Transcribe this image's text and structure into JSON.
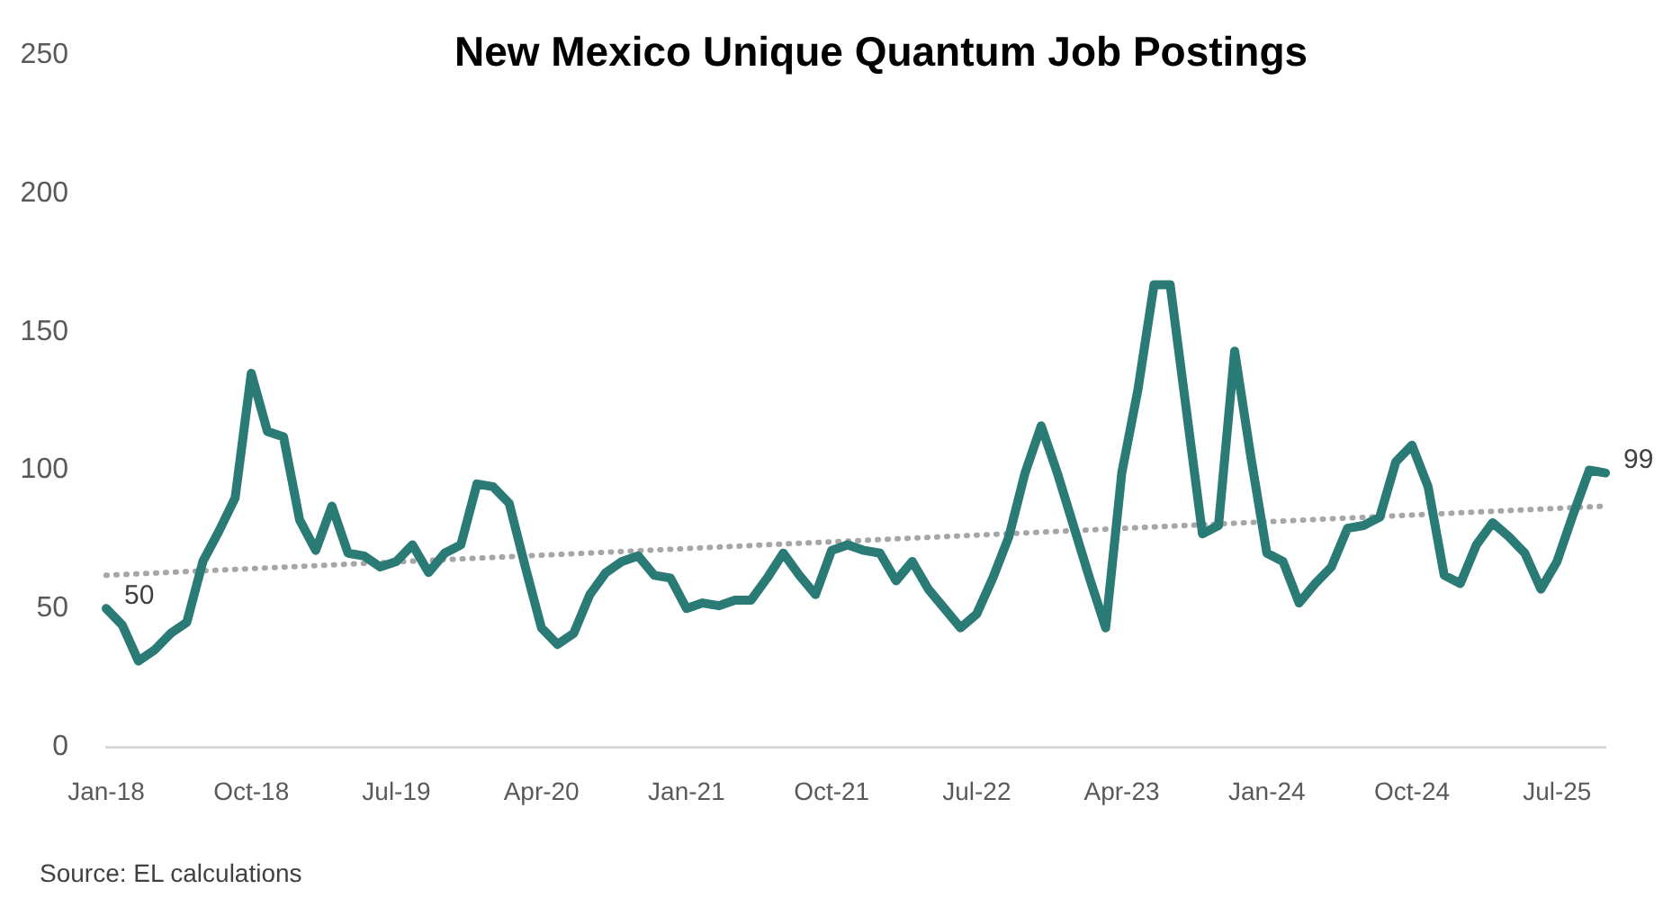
{
  "chart_data": {
    "type": "line",
    "title": "New Mexico Unique Quantum Job Postings",
    "annotations": [
      "Source: EL calculations"
    ],
    "x": [
      "2018-01",
      "2018-02",
      "2018-03",
      "2018-04",
      "2018-05",
      "2018-06",
      "2018-07",
      "2018-08",
      "2018-09",
      "2018-10",
      "2018-11",
      "2018-12",
      "2019-01",
      "2019-02",
      "2019-03",
      "2019-04",
      "2019-05",
      "2019-06",
      "2019-07",
      "2019-08",
      "2019-09",
      "2019-10",
      "2019-11",
      "2019-12",
      "2020-01",
      "2020-02",
      "2020-03",
      "2020-04",
      "2020-05",
      "2020-06",
      "2020-07",
      "2020-08",
      "2020-09",
      "2020-10",
      "2020-11",
      "2020-12",
      "2021-01",
      "2021-02",
      "2021-03",
      "2021-04",
      "2021-05",
      "2021-06",
      "2021-07",
      "2021-08",
      "2021-09",
      "2021-10",
      "2021-11",
      "2021-12",
      "2022-01",
      "2022-02",
      "2022-03",
      "2022-04",
      "2022-05",
      "2022-06",
      "2022-07",
      "2022-08",
      "2022-09",
      "2022-10",
      "2022-11",
      "2022-12",
      "2023-01",
      "2023-02",
      "2023-03",
      "2023-04",
      "2023-05",
      "2023-06",
      "2023-07",
      "2023-08",
      "2023-09",
      "2023-10",
      "2023-11",
      "2023-12",
      "2024-01",
      "2024-02",
      "2024-03",
      "2024-04",
      "2024-05",
      "2024-06",
      "2024-07",
      "2024-08",
      "2024-09",
      "2024-10",
      "2024-11",
      "2024-12",
      "2025-01",
      "2025-02",
      "2025-03",
      "2025-04",
      "2025-05",
      "2025-06",
      "2025-07",
      "2025-08",
      "2025-09",
      "2025-10"
    ],
    "xlim": [
      "2018-01",
      "2025-10"
    ],
    "xticks": [
      {
        "value": "2018-01",
        "label": "Jan-18"
      },
      {
        "value": "2018-10",
        "label": "Oct-18"
      },
      {
        "value": "2019-07",
        "label": "Jul-19"
      },
      {
        "value": "2020-04",
        "label": "Apr-20"
      },
      {
        "value": "2021-01",
        "label": "Jan-21"
      },
      {
        "value": "2021-10",
        "label": "Oct-21"
      },
      {
        "value": "2022-07",
        "label": "Jul-22"
      },
      {
        "value": "2023-04",
        "label": "Apr-23"
      },
      {
        "value": "2024-01",
        "label": "Jan-24"
      },
      {
        "value": "2024-10",
        "label": "Oct-24"
      },
      {
        "value": "2025-07",
        "label": "Jul-25"
      }
    ],
    "ylim": [
      0,
      250
    ],
    "yticks": [
      0,
      50,
      100,
      150,
      200,
      250
    ],
    "grid": false,
    "legend": false,
    "marker": "none",
    "series": [
      {
        "color": "#2a7a76",
        "line_style": "solid",
        "values": [
          50,
          44,
          31,
          35,
          41,
          45,
          67,
          78,
          90,
          135,
          114,
          112,
          82,
          71,
          87,
          70,
          69,
          65,
          67,
          73,
          63,
          70,
          73,
          95,
          94,
          88,
          65,
          43,
          37,
          41,
          55,
          63,
          67,
          69,
          62,
          61,
          50,
          52,
          51,
          53,
          53,
          61,
          70,
          62,
          55,
          71,
          73,
          71,
          70,
          60,
          67,
          57,
          50,
          43,
          48,
          61,
          76,
          99,
          116,
          99,
          80,
          61,
          43,
          99,
          129,
          167,
          167,
          122,
          77,
          80,
          143,
          105,
          70,
          67,
          52,
          59,
          65,
          79,
          80,
          83,
          103,
          109,
          94,
          62,
          59,
          73,
          81,
          76,
          70,
          57,
          67,
          84,
          100,
          99
        ],
        "value_labels": [
          "50",
          null,
          null,
          null,
          null,
          null,
          null,
          null,
          null,
          null,
          null,
          null,
          null,
          null,
          null,
          null,
          null,
          null,
          null,
          null,
          null,
          null,
          null,
          null,
          null,
          null,
          null,
          null,
          null,
          null,
          null,
          null,
          null,
          null,
          null,
          null,
          null,
          null,
          null,
          null,
          null,
          null,
          null,
          null,
          null,
          null,
          null,
          null,
          null,
          null,
          null,
          null,
          null,
          null,
          null,
          null,
          null,
          null,
          null,
          null,
          null,
          null,
          null,
          null,
          null,
          null,
          null,
          null,
          null,
          null,
          null,
          null,
          null,
          null,
          null,
          null,
          null,
          null,
          null,
          null,
          null,
          null,
          null,
          null,
          null,
          null,
          null,
          null,
          null,
          null,
          null,
          null,
          null,
          "99"
        ]
      },
      {
        "type": "line",
        "x": [
          "2018-01",
          "2025-10"
        ],
        "values": [
          62,
          87
        ],
        "color": "#a6a6a6",
        "line_style": "dotted"
      }
    ]
  }
}
